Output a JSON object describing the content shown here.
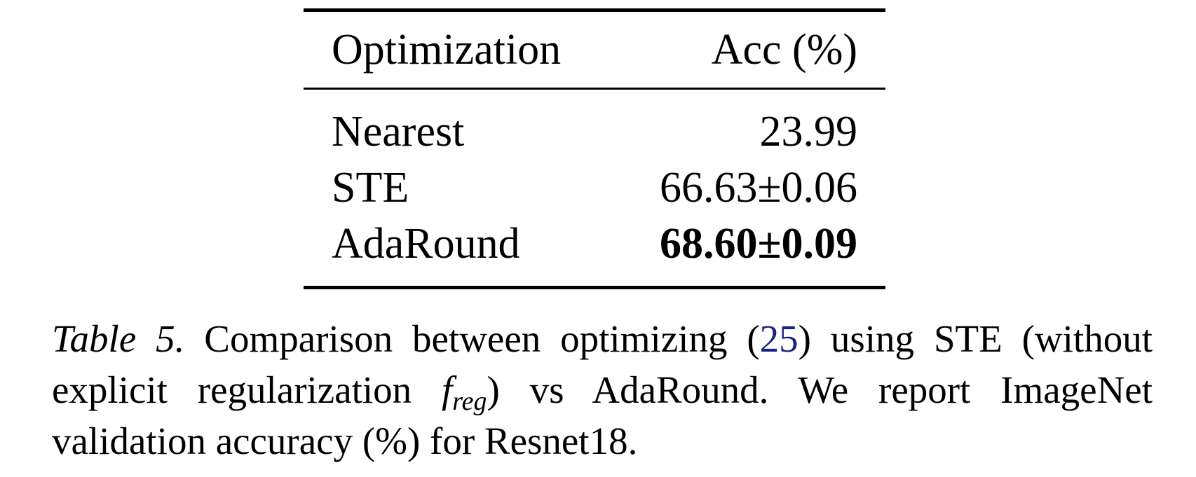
{
  "table": {
    "headers": [
      "Optimization",
      "Acc (%)"
    ],
    "rows": [
      {
        "method": "Nearest",
        "acc": "23.99",
        "bold": false
      },
      {
        "method": "STE",
        "acc": "66.63±0.06",
        "bold": false
      },
      {
        "method": "AdaRound",
        "acc": "68.60±0.09",
        "bold": true
      }
    ]
  },
  "caption": {
    "label": "Table 5.",
    "part1": " Comparison between optimizing (",
    "citation": "25",
    "part2": ") using STE (without explicit regularization ",
    "math_symbol": "f",
    "math_subscript": "reg",
    "part3": ") vs AdaRound. We report ImageNet validation accuracy (%) for Resnet18."
  },
  "colors": {
    "citation_link": "#1a237e",
    "text": "#000000"
  }
}
